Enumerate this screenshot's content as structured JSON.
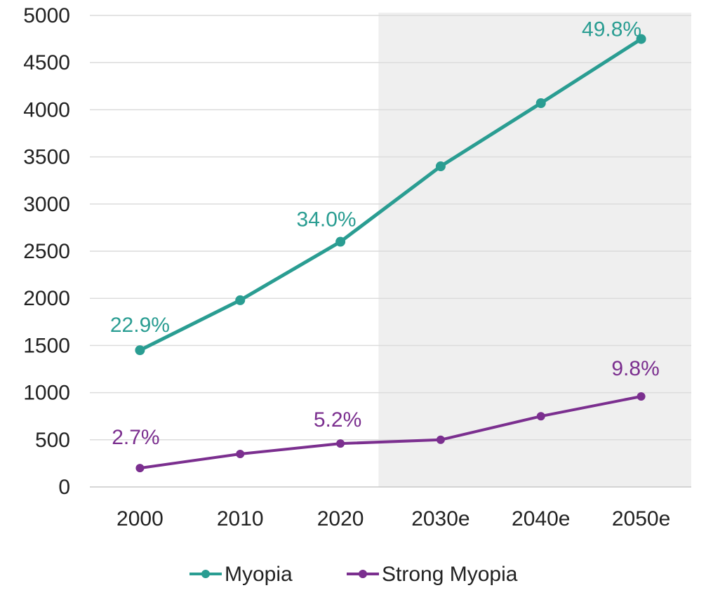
{
  "chart_data": {
    "type": "line",
    "categories": [
      "2000",
      "2010",
      "2020",
      "2030e",
      "2040e",
      "2050e"
    ],
    "ylim": [
      0,
      5000
    ],
    "yticks": [
      0,
      500,
      1000,
      1500,
      2000,
      2500,
      3000,
      3500,
      4000,
      4500,
      5000
    ],
    "grid": true,
    "shaded_region": {
      "from_category": "2030e",
      "to_category": "2050e",
      "color": "#efefef"
    },
    "legend_position": "bottom-center",
    "series": [
      {
        "name": "Myopia",
        "color": "#2a9d92",
        "values": [
          1450,
          1980,
          2600,
          3400,
          4070,
          4750
        ],
        "labels": [
          "22.9%",
          null,
          "34.0%",
          null,
          null,
          "49.8%"
        ]
      },
      {
        "name": "Strong Myopia",
        "color": "#7b2f8f",
        "values": [
          200,
          350,
          460,
          500,
          750,
          960
        ],
        "labels": [
          "2.7%",
          null,
          "5.2%",
          null,
          null,
          "9.8%"
        ]
      }
    ]
  }
}
